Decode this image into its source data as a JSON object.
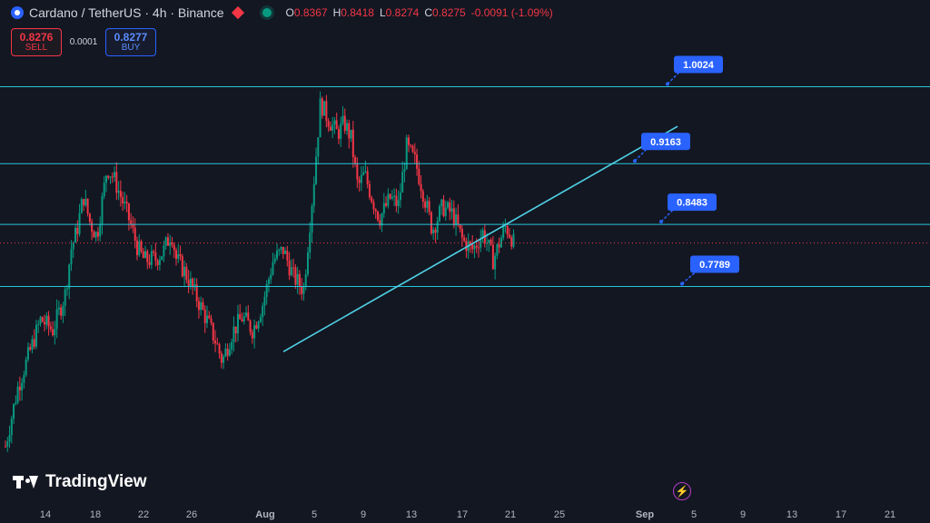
{
  "header": {
    "title": "Cardano / TetherUS · 4h · Binance",
    "ohlc": [
      {
        "k": "O",
        "v": "0.8367"
      },
      {
        "k": "H",
        "v": "0.8418"
      },
      {
        "k": "L",
        "v": "0.8274"
      },
      {
        "k": "C",
        "v": "0.8275"
      },
      {
        "k": "",
        "v": "-0.0091 (-1.09%)"
      }
    ]
  },
  "trade": {
    "sell_price": "0.8276",
    "sell_label": "SELL",
    "spread": "0.0001",
    "buy_price": "0.8277",
    "buy_label": "BUY"
  },
  "branding": {
    "logo_text": "TradingView"
  },
  "icons": {
    "symbol": "cardano-icon",
    "flag": "flag-icon",
    "status": "market-status-icon",
    "event": "lightning-event-icon"
  },
  "colors": {
    "background": "#131722",
    "up": "#089981",
    "down": "#f23645",
    "levels": "#26c6da",
    "label_bg": "#2962ff"
  },
  "chart_data": {
    "type": "candlestick",
    "symbol": "ADAUSDT",
    "timeframe": "4h",
    "x_ticks": [
      "14",
      "18",
      "22",
      "26",
      "Aug",
      "5",
      "9",
      "13",
      "17",
      "21",
      "25",
      "Sep",
      "5",
      "9",
      "13",
      "17",
      "21"
    ],
    "ylim": [
      0.56,
      1.07
    ],
    "current_price": 0.8275,
    "horizontal_levels": [
      1.0024,
      0.9163,
      0.8483,
      0.7789
    ],
    "level_labels": [
      "1.0024",
      "0.9163",
      "0.8483",
      "0.7789"
    ],
    "trendline": [
      {
        "x": 0,
        "y": 0.706
      },
      {
        "x": 1,
        "y": 0.958
      }
    ],
    "close_path": [
      [
        0.0,
        0.6
      ],
      [
        0.018,
        0.665
      ],
      [
        0.035,
        0.704
      ],
      [
        0.052,
        0.742
      ],
      [
        0.07,
        0.73
      ],
      [
        0.088,
        0.77
      ],
      [
        0.097,
        0.821
      ],
      [
        0.105,
        0.84
      ],
      [
        0.115,
        0.88
      ],
      [
        0.125,
        0.85
      ],
      [
        0.135,
        0.835
      ],
      [
        0.15,
        0.912
      ],
      [
        0.16,
        0.9
      ],
      [
        0.172,
        0.876
      ],
      [
        0.182,
        0.855
      ],
      [
        0.195,
        0.822
      ],
      [
        0.205,
        0.808
      ],
      [
        0.222,
        0.81
      ],
      [
        0.233,
        0.818
      ],
      [
        0.245,
        0.84
      ],
      [
        0.252,
        0.81
      ],
      [
        0.265,
        0.795
      ],
      [
        0.28,
        0.77
      ],
      [
        0.298,
        0.74
      ],
      [
        0.31,
        0.718
      ],
      [
        0.32,
        0.695
      ],
      [
        0.335,
        0.728
      ],
      [
        0.35,
        0.745
      ],
      [
        0.365,
        0.73
      ],
      [
        0.38,
        0.76
      ],
      [
        0.395,
        0.808
      ],
      [
        0.41,
        0.82
      ],
      [
        0.425,
        0.79
      ],
      [
        0.44,
        0.775
      ],
      [
        0.455,
        0.895
      ],
      [
        0.465,
        0.985
      ],
      [
        0.475,
        0.968
      ],
      [
        0.49,
        0.95
      ],
      [
        0.5,
        0.962
      ],
      [
        0.51,
        0.945
      ],
      [
        0.52,
        0.89
      ],
      [
        0.53,
        0.905
      ],
      [
        0.54,
        0.88
      ],
      [
        0.552,
        0.855
      ],
      [
        0.568,
        0.878
      ],
      [
        0.58,
        0.87
      ],
      [
        0.592,
        0.935
      ],
      [
        0.605,
        0.918
      ],
      [
        0.618,
        0.88
      ],
      [
        0.63,
        0.842
      ],
      [
        0.645,
        0.868
      ],
      [
        0.66,
        0.86
      ],
      [
        0.675,
        0.83
      ],
      [
        0.69,
        0.82
      ],
      [
        0.705,
        0.84
      ],
      [
        0.72,
        0.808
      ],
      [
        0.73,
        0.83
      ],
      [
        0.738,
        0.846
      ],
      [
        0.745,
        0.838
      ],
      [
        0.75,
        0.8275
      ]
    ],
    "xlabel": "",
    "ylabel": ""
  }
}
